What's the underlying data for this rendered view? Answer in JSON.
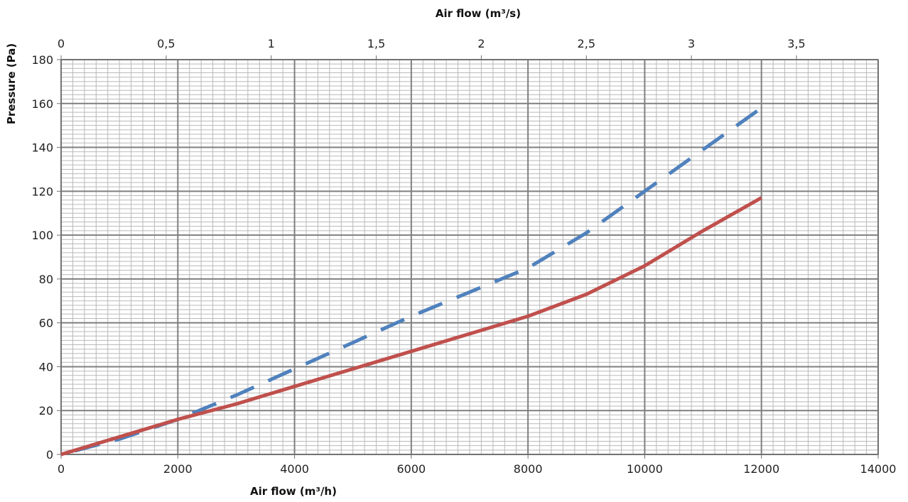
{
  "chart_data": {
    "type": "line",
    "xlabel": "Air flow (m³/h)",
    "x2label": "Air flow (m³/s)",
    "ylabel": "Pressure (Pa)",
    "xlim": [
      0,
      14000
    ],
    "x2lim": [
      0,
      3.888889
    ],
    "ylim": [
      0,
      180
    ],
    "xticks": [
      "0",
      "2000",
      "4000",
      "6000",
      "8000",
      "10000",
      "12000",
      "14000"
    ],
    "xtick_values": [
      0,
      2000,
      4000,
      6000,
      8000,
      10000,
      12000,
      14000
    ],
    "x2ticks": [
      "0",
      "0,5",
      "1",
      "1,5",
      "2",
      "2,5",
      "3",
      "3,5"
    ],
    "x2tick_values": [
      0,
      0.5,
      1,
      1.5,
      2,
      2.5,
      3,
      3.5
    ],
    "yticks": [
      "0",
      "20",
      "40",
      "60",
      "80",
      "100",
      "120",
      "140",
      "160",
      "180"
    ],
    "ytick_values": [
      0,
      20,
      40,
      60,
      80,
      100,
      120,
      140,
      160,
      180
    ],
    "grid": true,
    "series": [
      {
        "color": "#4F81BD",
        "style": "dashed",
        "x": [
          0,
          1000,
          2000,
          3000,
          4000,
          5000,
          6000,
          7000,
          8000,
          9000,
          10000,
          11000,
          12000
        ],
        "y": [
          0,
          7,
          16,
          27,
          39,
          51,
          63,
          74,
          85,
          101,
          120,
          139,
          158
        ]
      },
      {
        "color": "#C0504D",
        "style": "solid",
        "x": [
          0,
          1000,
          2000,
          3000,
          4000,
          5000,
          6000,
          7000,
          8000,
          9000,
          10000,
          11000,
          12000
        ],
        "y": [
          0,
          8,
          16,
          23,
          31,
          39,
          47,
          55,
          63,
          73,
          86,
          102,
          117
        ]
      }
    ]
  }
}
